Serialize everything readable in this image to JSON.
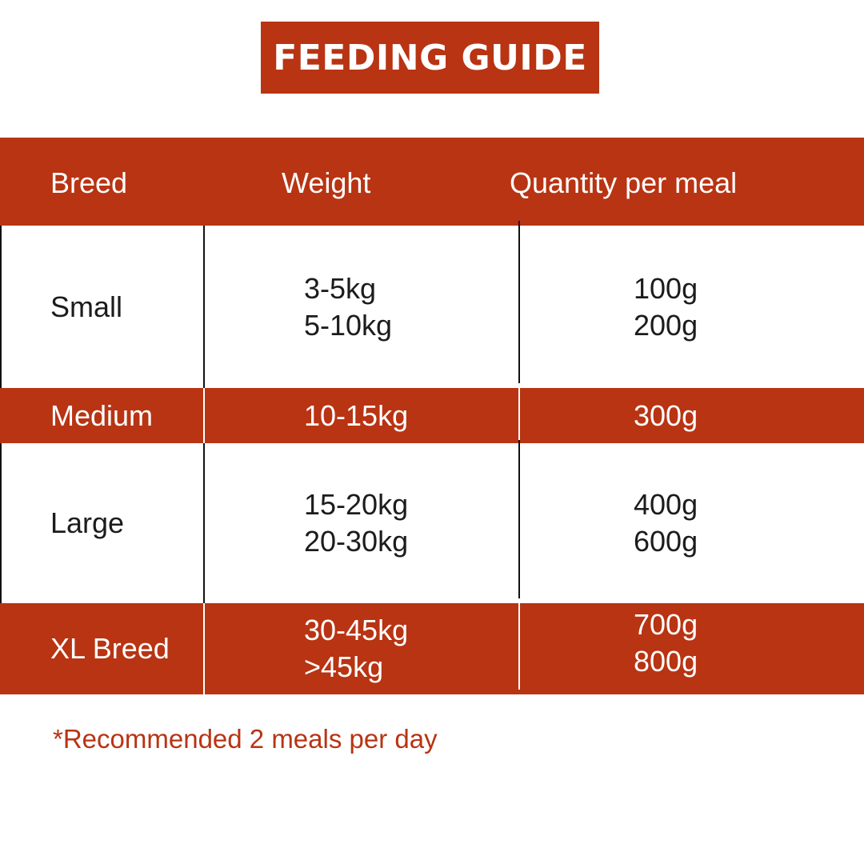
{
  "title": "FEEDING GUIDE",
  "colors": {
    "accent": "#b83413",
    "text": "#1c1c1c",
    "on_accent": "#ffffff"
  },
  "table": {
    "headers": [
      "Breed",
      "Weight",
      "Quantity per meal"
    ],
    "rows": [
      {
        "breed": "Small",
        "weights": [
          "3-5kg",
          "5-10kg"
        ],
        "quantities": [
          "100g",
          "200g"
        ]
      },
      {
        "breed": "Medium",
        "weights": [
          "10-15kg"
        ],
        "quantities": [
          "300g"
        ]
      },
      {
        "breed": "Large",
        "weights": [
          "15-20kg",
          "20-30kg"
        ],
        "quantities": [
          "400g",
          "600g"
        ]
      },
      {
        "breed": "XL Breed",
        "weights": [
          "30-45kg",
          ">45kg"
        ],
        "quantities": [
          "700g",
          "800g"
        ]
      }
    ]
  },
  "note": "*Recommended 2 meals per day"
}
